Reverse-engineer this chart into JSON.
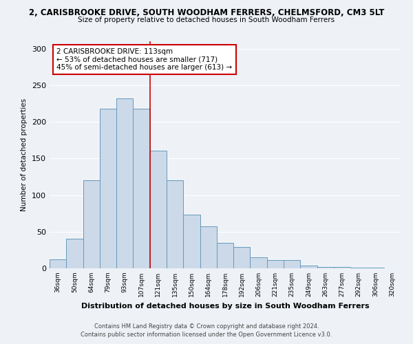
{
  "title_line1": "2, CARISBROOKE DRIVE, SOUTH WOODHAM FERRERS, CHELMSFORD, CM3 5LT",
  "title_line2": "Size of property relative to detached houses in South Woodham Ferrers",
  "xlabel": "Distribution of detached houses by size in South Woodham Ferrers",
  "ylabel": "Number of detached properties",
  "categories": [
    "36sqm",
    "50sqm",
    "64sqm",
    "79sqm",
    "93sqm",
    "107sqm",
    "121sqm",
    "135sqm",
    "150sqm",
    "164sqm",
    "178sqm",
    "192sqm",
    "206sqm",
    "221sqm",
    "235sqm",
    "249sqm",
    "263sqm",
    "277sqm",
    "292sqm",
    "306sqm",
    "320sqm"
  ],
  "values": [
    12,
    40,
    120,
    218,
    232,
    218,
    161,
    120,
    73,
    57,
    35,
    29,
    15,
    11,
    11,
    4,
    2,
    2,
    1,
    1,
    0
  ],
  "bar_color": "#ccd9e8",
  "bar_edge_color": "#6699bb",
  "vline_x": 5.5,
  "vline_color": "#cc0000",
  "annotation_title": "2 CARISBROOKE DRIVE: 113sqm",
  "annotation_line2": "← 53% of detached houses are smaller (717)",
  "annotation_line3": "45% of semi-detached houses are larger (613) →",
  "annotation_box_color": "#ffffff",
  "annotation_border_color": "#cc0000",
  "ylim": [
    0,
    310
  ],
  "yticks": [
    0,
    50,
    100,
    150,
    200,
    250,
    300
  ],
  "footer_line1": "Contains HM Land Registry data © Crown copyright and database right 2024.",
  "footer_line2": "Contains public sector information licensed under the Open Government Licence v3.0.",
  "bg_color": "#eef2f7",
  "plot_bg_color": "#eef2f7"
}
